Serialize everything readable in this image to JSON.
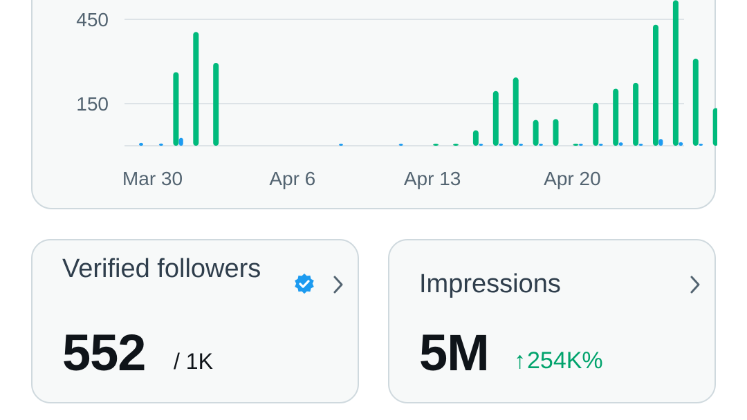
{
  "colors": {
    "green_series": "#00ba7c",
    "blue_series": "#1d9bf0",
    "grid": "#dde3e7",
    "positive": "#00a36c"
  },
  "chart_data": {
    "type": "bar",
    "title": "",
    "xlabel": "",
    "ylabel": "",
    "ylim": [
      0,
      510
    ],
    "y_ticks": [
      150,
      450
    ],
    "y_tick_labels": [
      "150",
      "450"
    ],
    "x_tick_labels": [
      {
        "label": "Mar 30",
        "day": 0
      },
      {
        "label": "Apr 6",
        "day": 7
      },
      {
        "label": "Apr 13",
        "day": 14
      },
      {
        "label": "Apr 20",
        "day": 21
      }
    ],
    "categories": [
      "Mar 30",
      "Mar 31",
      "Apr 1",
      "Apr 2",
      "Apr 3",
      "Apr 4",
      "Apr 5",
      "Apr 6",
      "Apr 7",
      "Apr 8",
      "Apr 9",
      "Apr 10",
      "Apr 11",
      "Apr 12",
      "Apr 13",
      "Apr 14",
      "Apr 15",
      "Apr 16",
      "Apr 17",
      "Apr 18",
      "Apr 19",
      "Apr 20",
      "Apr 21",
      "Apr 22",
      "Apr 23",
      "Apr 24",
      "Apr 25",
      "Apr 26",
      "Apr 27"
    ],
    "series": [
      {
        "name": "green",
        "values": [
          0,
          262,
          405,
          295,
          0,
          0,
          0,
          0,
          0,
          0,
          0,
          0,
          0,
          0,
          3,
          3,
          55,
          195,
          243,
          92,
          95,
          5,
          153,
          203,
          224,
          431,
          518,
          310,
          134
        ]
      },
      {
        "name": "blue",
        "values": [
          10,
          8,
          28,
          0,
          0,
          0,
          0,
          0,
          0,
          0,
          2,
          0,
          0,
          2,
          0,
          0,
          0,
          5,
          8,
          3,
          3,
          0,
          2,
          3,
          12,
          3,
          24,
          13,
          3
        ]
      }
    ]
  },
  "verified_followers": {
    "title": "Verified followers",
    "value": "552",
    "suffix": "/ 1K"
  },
  "impressions": {
    "title": "Impressions",
    "value": "5M",
    "change": "254K%",
    "change_arrow": "↑"
  }
}
